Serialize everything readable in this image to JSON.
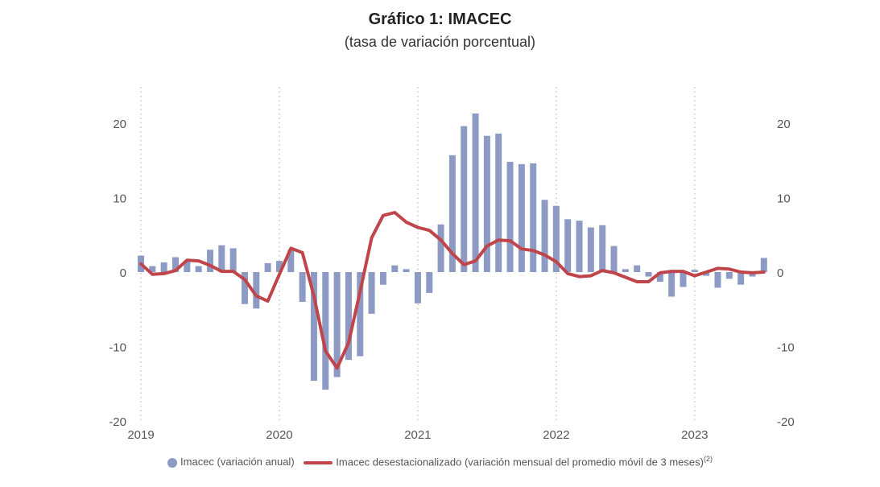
{
  "chart_data": {
    "type": "bar+line",
    "title": "Gráfico 1:  IMACEC",
    "subtitle": "(tasa de variación porcentual)",
    "x_tick_labels": [
      "2019",
      "2020",
      "2021",
      "2022",
      "2023"
    ],
    "y_ticks": [
      20,
      10,
      0,
      -10,
      -20
    ],
    "ylim": [
      -20,
      20
    ],
    "grid": "vertical dotted at year starts",
    "legend_position": "bottom",
    "start_month": "2019-01",
    "series": [
      {
        "name": "Imacec (variación anual)",
        "type": "bar",
        "color": "#8d9bc4",
        "values": [
          2.2,
          0.8,
          1.3,
          2.0,
          1.4,
          0.8,
          3.0,
          3.6,
          3.2,
          -4.3,
          -4.9,
          1.2,
          1.5,
          3.0,
          -4.0,
          -14.6,
          -15.8,
          -14.1,
          -11.8,
          -11.3,
          -5.6,
          -1.7,
          0.9,
          0.4,
          -4.2,
          -2.8,
          6.4,
          15.7,
          19.6,
          21.3,
          18.3,
          18.6,
          14.8,
          14.5,
          14.6,
          9.7,
          8.9,
          7.1,
          6.9,
          6.0,
          6.3,
          3.5,
          0.4,
          0.9,
          -0.6,
          -1.3,
          -3.3,
          -2.0,
          0.3,
          -0.5,
          -2.1,
          -0.9,
          -1.7,
          -0.6,
          1.9
        ]
      },
      {
        "name": "Imacec desestacionalizado (variación mensual del promedio móvil de 3 meses)",
        "legend_superscript": "(2)",
        "type": "line",
        "color": "#c0454b",
        "values": [
          1.1,
          -0.3,
          -0.2,
          0.2,
          1.6,
          1.5,
          0.9,
          0.1,
          0.1,
          -1.0,
          -3.2,
          -3.9,
          -0.3,
          3.2,
          2.6,
          -3.2,
          -10.6,
          -12.9,
          -9.5,
          -2.6,
          4.6,
          7.6,
          8.0,
          6.7,
          6.0,
          5.6,
          4.3,
          2.5,
          1.0,
          1.5,
          3.5,
          4.3,
          4.2,
          3.1,
          2.9,
          2.3,
          1.4,
          -0.2,
          -0.6,
          -0.5,
          0.2,
          -0.1,
          -0.7,
          -1.3,
          -1.3,
          -0.1,
          0.1,
          0.1,
          -0.5,
          0.0,
          0.5,
          0.4,
          0.0,
          -0.1,
          0.0
        ]
      }
    ]
  }
}
